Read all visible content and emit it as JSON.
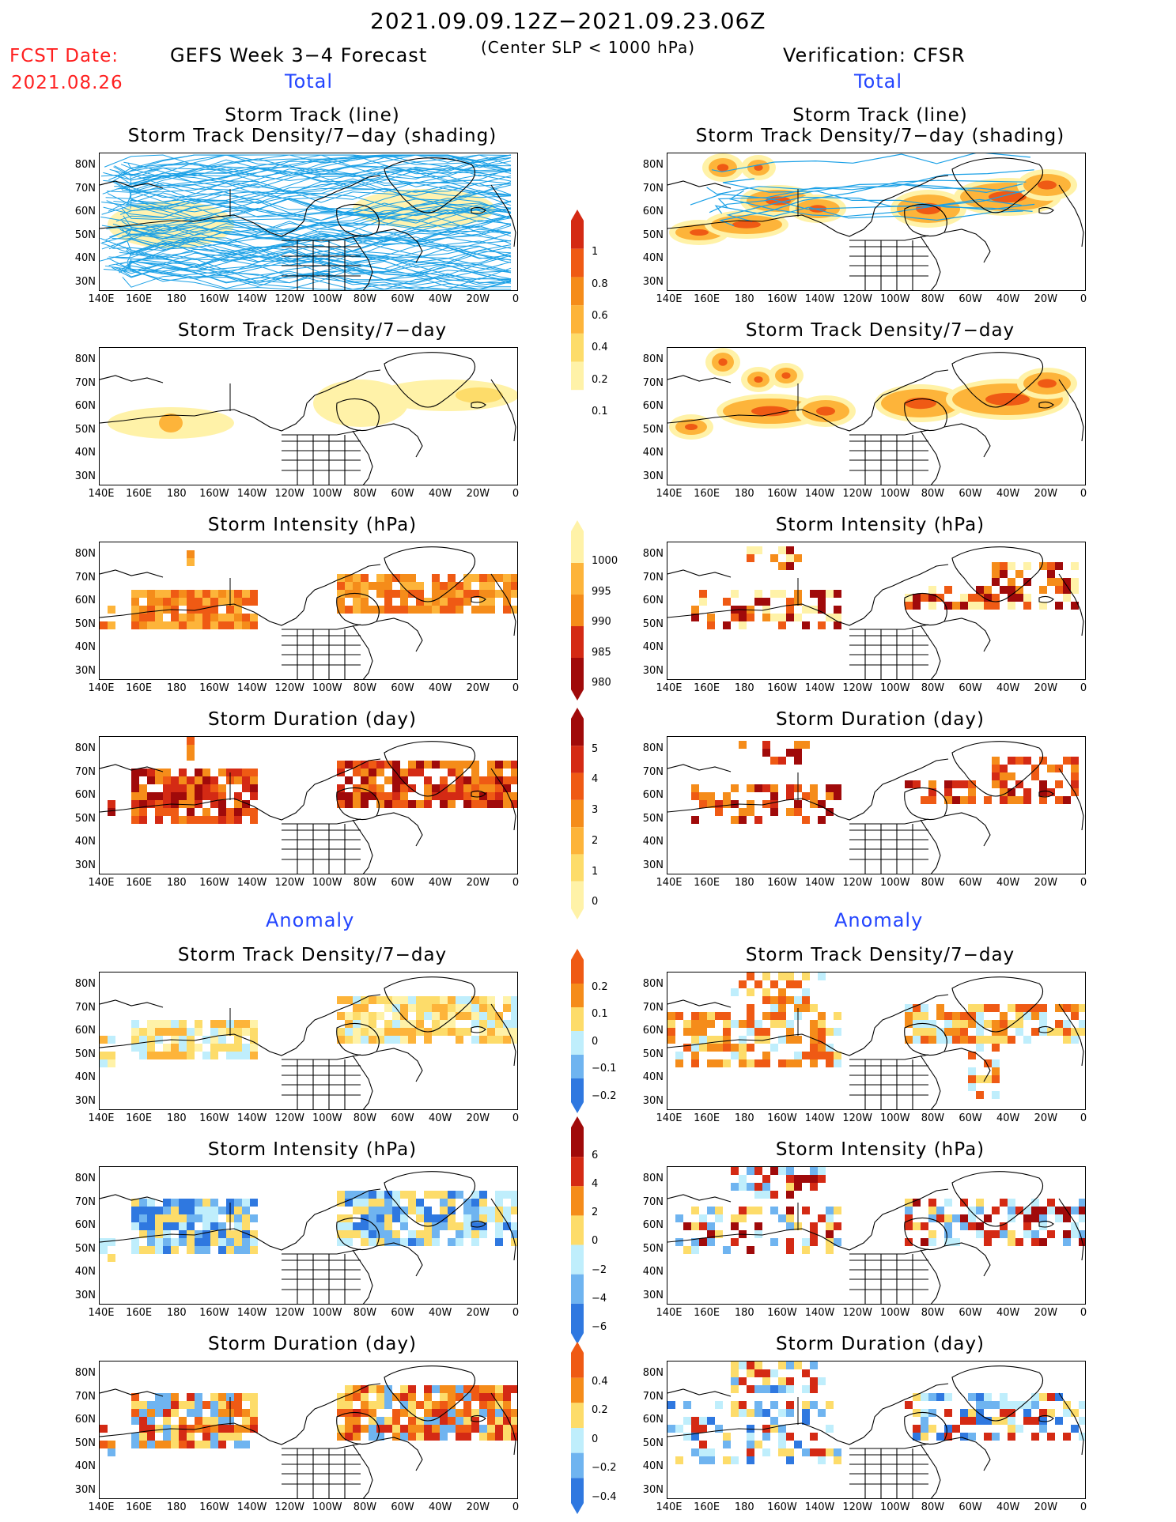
{
  "header": {
    "date_range": "2021.09.09.12Z−2021.09.23.06Z",
    "fcst_label": "FCST Date:",
    "fcst_date": "2021.08.26",
    "left_title": "GEFS Week 3−4 Forecast",
    "center_note": "(Center SLP < 1000 hPa)",
    "right_title": "Verification: CFSR"
  },
  "section_labels": {
    "total": "Total",
    "anomaly": "Anomaly"
  },
  "panel_titles": {
    "track_line": "Storm Track (line)",
    "track_shading": "Storm Track Density/7−day (shading)",
    "density": "Storm Track Density/7−day",
    "intensity": "Storm Intensity (hPa)",
    "duration": "Storm Duration (day)"
  },
  "axes": {
    "lat_labels": [
      "80N",
      "70N",
      "60N",
      "50N",
      "40N",
      "30N"
    ],
    "lon_labels": [
      "140E",
      "160E",
      "180",
      "160W",
      "140W",
      "120W",
      "100W",
      "80W",
      "60W",
      "40W",
      "20W",
      "0"
    ]
  },
  "colorbars": {
    "density_total": [
      "1",
      "0.8",
      "0.6",
      "0.4",
      "0.2",
      "0.1"
    ],
    "intensity_total": [
      "1000",
      "995",
      "990",
      "985",
      "980"
    ],
    "duration_total": [
      "5",
      "4",
      "3",
      "2",
      "1",
      "0"
    ],
    "density_anom": [
      "0.2",
      "0.1",
      "0",
      "−0.1",
      "−0.2"
    ],
    "intensity_anom": [
      "6",
      "4",
      "2",
      "0",
      "−2",
      "−4",
      "−6"
    ],
    "duration_anom": [
      "0.4",
      "0.2",
      "0",
      "−0.2",
      "−0.4"
    ]
  },
  "colors": {
    "track_line": "#1aa0e6",
    "yellow_light": "#fff2a8",
    "yellow": "#fddc6a",
    "orange_light": "#fdb43a",
    "orange": "#f58c1a",
    "orange_red": "#ef5a14",
    "red": "#d42a14",
    "dark_red": "#a00a0a",
    "blue_light": "#bfeefc",
    "blue": "#6fb4f0",
    "blue_dark": "#2f78e0"
  }
}
